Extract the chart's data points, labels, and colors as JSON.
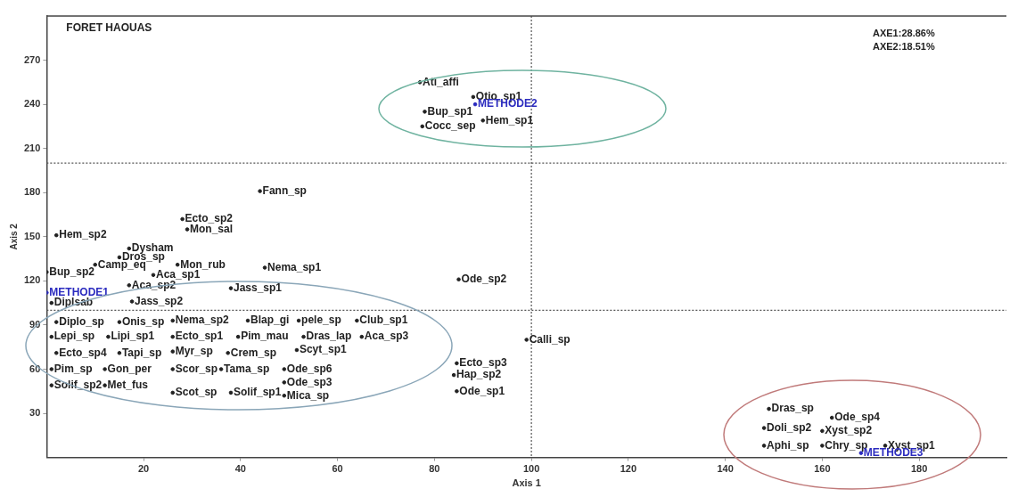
{
  "chart_data": {
    "type": "scatter",
    "title": "FORET HAOUAS",
    "xlabel": "Axis 1",
    "ylabel": "Axis 2",
    "annotations": [
      "AXE1:28.86%",
      "AXE2:18.51%"
    ],
    "xlim": [
      0,
      198
    ],
    "ylim": [
      0,
      300
    ],
    "xticks": [
      20,
      40,
      60,
      80,
      100,
      120,
      140,
      160,
      180
    ],
    "yticks": [
      30,
      60,
      90,
      120,
      150,
      180,
      210,
      240,
      270
    ],
    "grid": false,
    "legend": false,
    "marker": "circle",
    "ref_lines": [
      {
        "axis": "x",
        "value": 100,
        "color": "#555555",
        "line_style": "dotted"
      },
      {
        "axis": "y",
        "value": 100,
        "color": "#555555",
        "line_style": "dotted"
      },
      {
        "axis": "y",
        "value": 200,
        "color": "#555555",
        "line_style": "dotted"
      }
    ],
    "series": [
      {
        "color": "#222222",
        "x": [
          77,
          88,
          78,
          90,
          77.5,
          44,
          28,
          29,
          2,
          17,
          15,
          10,
          27,
          0,
          45,
          22,
          17,
          38,
          1,
          17.6,
          85,
          2,
          15,
          26,
          41.5,
          52,
          64,
          1,
          12.7,
          26,
          39.5,
          53,
          65,
          2,
          15,
          26,
          37.4,
          51.6,
          1,
          12,
          26,
          36,
          49,
          1,
          12,
          26,
          38,
          49,
          49,
          99,
          84.6,
          84,
          84.6,
          149,
          148,
          148,
          162,
          160,
          160,
          173
        ],
        "values": [
          255,
          245,
          235,
          229,
          225,
          181,
          162,
          155,
          151,
          142,
          136,
          131,
          131,
          126,
          129,
          124,
          117,
          115,
          105,
          106,
          121,
          92,
          92,
          93,
          93,
          93,
          93,
          82,
          82,
          82,
          82,
          82,
          82,
          71,
          71,
          72,
          71,
          73,
          60,
          60,
          60,
          60,
          60,
          49,
          49,
          44,
          44,
          51,
          42,
          80,
          64,
          56,
          45,
          33,
          20,
          8,
          27,
          18,
          8,
          8
        ],
        "value_labels": [
          "Ati_affi",
          "Otio_sp1",
          "Bup_sp1",
          "Hem_sp1",
          "Cocc_sep",
          "Fann_sp",
          "Ecto_sp2",
          "Mon_sal",
          "Hem_sp2",
          "Dysham",
          "Dros_sp",
          "Camp_eq",
          "Mon_rub",
          "Bup_sp2",
          "Nema_sp1",
          "Aca_sp1",
          "Aca_sp2",
          "Jass_sp1",
          "Diplsab",
          "Jass_sp2",
          "Ode_sp2",
          "Diplo_sp",
          "Onis_sp",
          "Nema_sp2",
          "Blap_gi",
          "pele_sp",
          "Club_sp1",
          "Lepi_sp",
          "Lipi_sp1",
          "Ecto_sp1",
          "Pim_mau",
          "Dras_lap",
          "Aca_sp3",
          "Ecto_sp4",
          "Tapi_sp",
          "Myr_sp",
          "Crem_sp",
          "Scyt_sp1",
          "Pim_sp",
          "Gon_per",
          "Scor_sp",
          "Tama_sp",
          "Ode_sp6",
          "Solif_sp2",
          "Met_fus",
          "Scot_sp",
          "Solif_sp1",
          "Ode_sp3",
          "Mica_sp",
          "Calli_sp",
          "Ecto_sp3",
          "Hap_sp2",
          "Ode_sp1",
          "Dras_sp",
          "Doli_sp2",
          "Aphi_sp",
          "Ode_sp4",
          "Xyst_sp2",
          "Chry_sp",
          "Xyst_sp1"
        ]
      },
      {
        "color": "#2b2bbf",
        "x": [
          0,
          88.4,
          168
        ],
        "values": [
          112,
          240,
          3
        ],
        "value_labels": [
          "METHODE1",
          "METHODE2",
          "METHODE3"
        ]
      }
    ]
  }
}
